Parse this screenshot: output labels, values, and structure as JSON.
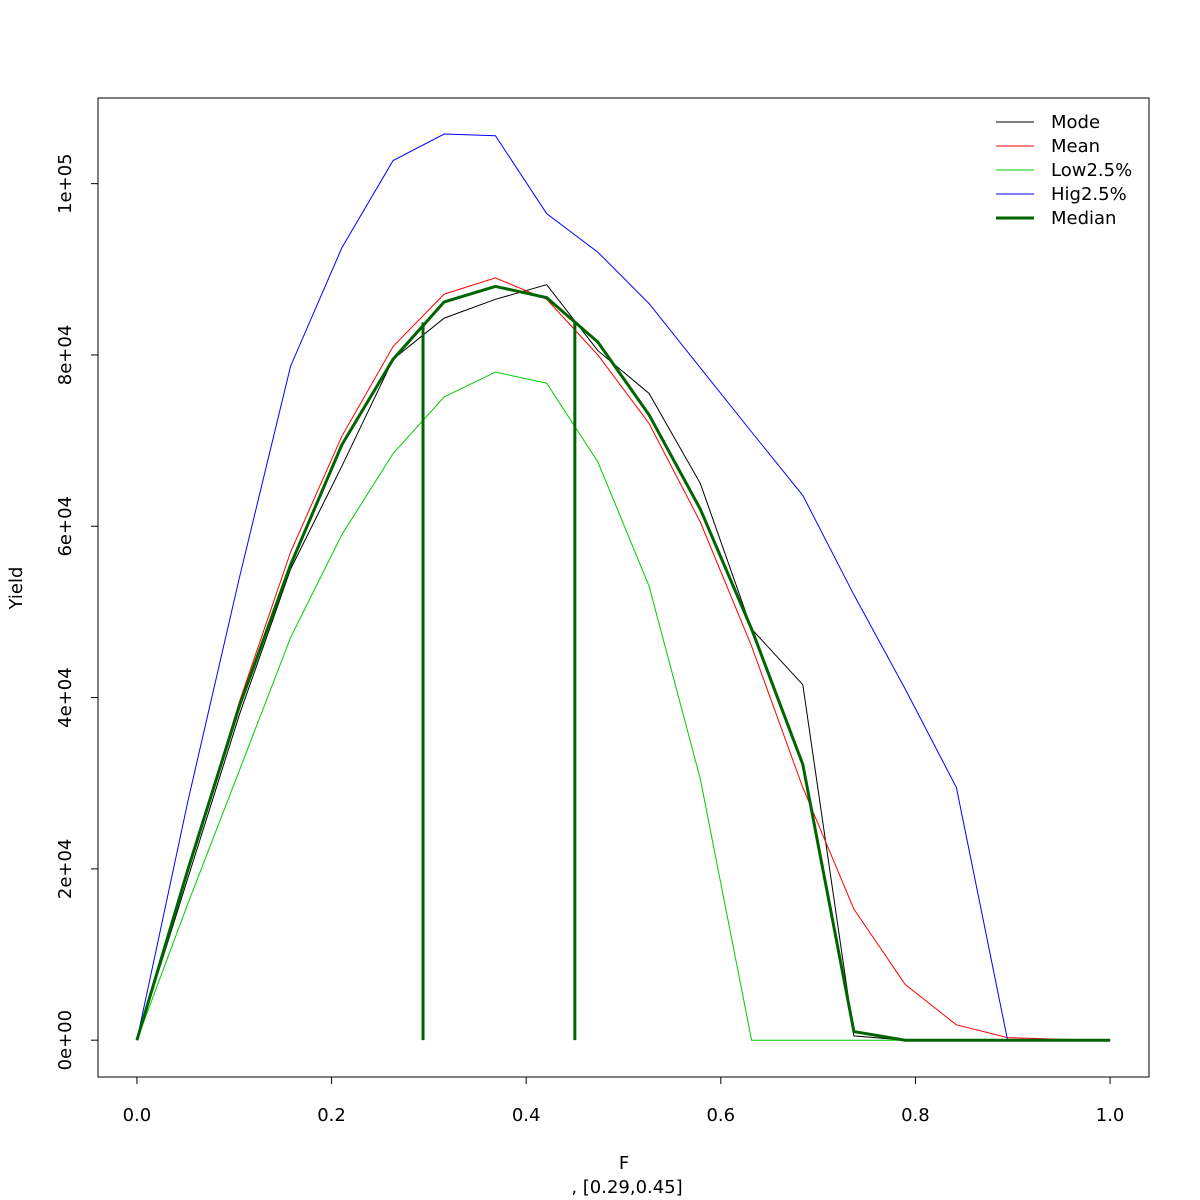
{
  "chart_data": {
    "type": "line",
    "xlabel": "F",
    "subtitle": ", [0.29,0.45]",
    "ylabel": "Yield",
    "xlim": [
      -0.04,
      1.04
    ],
    "ylim": [
      -4300,
      110000
    ],
    "x_ticks": [
      {
        "value": 0.0,
        "label": "0.0"
      },
      {
        "value": 0.2,
        "label": "0.2"
      },
      {
        "value": 0.4,
        "label": "0.4"
      },
      {
        "value": 0.6,
        "label": "0.6"
      },
      {
        "value": 0.8,
        "label": "0.8"
      },
      {
        "value": 1.0,
        "label": "1.0"
      }
    ],
    "y_ticks": [
      {
        "value": 0,
        "label": "0e+00"
      },
      {
        "value": 20000,
        "label": "2e+04"
      },
      {
        "value": 40000,
        "label": "4e+04"
      },
      {
        "value": 60000,
        "label": "6e+04"
      },
      {
        "value": 80000,
        "label": "8e+04"
      },
      {
        "value": 100000,
        "label": "1e+05"
      }
    ],
    "x": [
      0.0,
      0.0526,
      0.1053,
      0.1579,
      0.2105,
      0.2632,
      0.3158,
      0.3684,
      0.4211,
      0.4737,
      0.5263,
      0.5789,
      0.6316,
      0.6842,
      0.7368,
      0.7895,
      0.8421,
      0.8947,
      0.9474,
      1.0
    ],
    "series": [
      {
        "name": "Mode",
        "color": "#000000",
        "width": 1,
        "values": [
          0,
          19000,
          38000,
          55000,
          67000,
          79500,
          84300,
          86500,
          88200,
          80500,
          75500,
          65000,
          48000,
          41500,
          500,
          0,
          0,
          0,
          0,
          0
        ]
      },
      {
        "name": "Mean",
        "color": "#ff0000",
        "width": 1,
        "values": [
          0,
          20000,
          39500,
          57000,
          70500,
          81000,
          87100,
          89000,
          86500,
          80000,
          72000,
          60500,
          46000,
          29500,
          15300,
          6500,
          1800,
          300,
          100,
          0
        ]
      },
      {
        "name": "Low2.5%",
        "color": "#00cc00",
        "width": 1,
        "values": [
          0,
          16000,
          31500,
          47000,
          59000,
          68500,
          75100,
          78000,
          76700,
          67500,
          53000,
          30500,
          0,
          0,
          0,
          0,
          0,
          0,
          0,
          0
        ]
      },
      {
        "name": "Hig2.5%",
        "color": "#0000ff",
        "width": 1,
        "values": [
          0,
          28000,
          54000,
          78700,
          92500,
          102700,
          105800,
          105600,
          96500,
          92000,
          86000,
          78500,
          71000,
          63600,
          52000,
          41000,
          29500,
          0,
          0,
          0
        ]
      },
      {
        "name": "Median",
        "color": "#006400",
        "width": 3,
        "values": [
          0,
          20000,
          39000,
          55500,
          69500,
          79500,
          86200,
          88000,
          86700,
          81500,
          73000,
          62000,
          48000,
          32200,
          1000,
          0,
          0,
          0,
          0,
          0
        ]
      }
    ],
    "vertical_lines": [
      {
        "x": 0.294,
        "y_top": 83800,
        "color": "#006400"
      },
      {
        "x": 0.45,
        "y_top": 83800,
        "color": "#006400"
      }
    ],
    "legend_position": "top-right"
  }
}
